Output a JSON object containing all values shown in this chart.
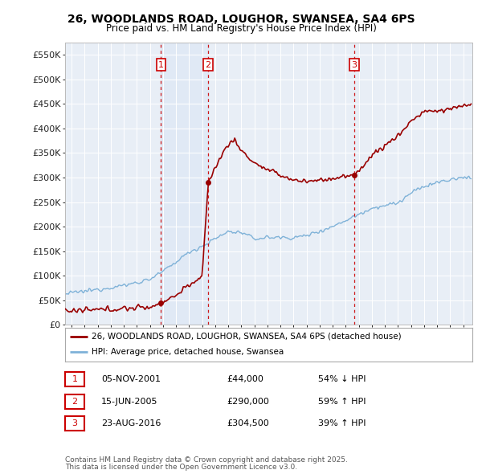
{
  "title": "26, WOODLANDS ROAD, LOUGHOR, SWANSEA, SA4 6PS",
  "subtitle": "Price paid vs. HM Land Registry's House Price Index (HPI)",
  "legend_property": "26, WOODLANDS ROAD, LOUGHOR, SWANSEA, SA4 6PS (detached house)",
  "legend_hpi": "HPI: Average price, detached house, Swansea",
  "footnote_line1": "Contains HM Land Registry data © Crown copyright and database right 2025.",
  "footnote_line2": "This data is licensed under the Open Government Licence v3.0.",
  "ylabel_ticks": [
    "£0",
    "£50K",
    "£100K",
    "£150K",
    "£200K",
    "£250K",
    "£300K",
    "£350K",
    "£400K",
    "£450K",
    "£500K",
    "£550K"
  ],
  "ytick_vals": [
    0,
    50000,
    100000,
    150000,
    200000,
    250000,
    300000,
    350000,
    400000,
    450000,
    500000,
    550000
  ],
  "ylim": [
    0,
    575000
  ],
  "transactions": [
    {
      "num": 1,
      "date": "05-NOV-2001",
      "date_x": 2001.846,
      "price": 44000,
      "label": "£44,000",
      "pct": "54% ↓ HPI"
    },
    {
      "num": 2,
      "date": "15-JUN-2005",
      "date_x": 2005.458,
      "price": 290000,
      "label": "£290,000",
      "pct": "59% ↑ HPI"
    },
    {
      "num": 3,
      "date": "23-AUG-2016",
      "date_x": 2016.644,
      "price": 304500,
      "label": "£304,500",
      "pct": "39% ↑ HPI"
    }
  ],
  "property_color": "#990000",
  "hpi_color": "#7fb2d8",
  "vline_color": "#cc0000",
  "shade_color": "#dde8f5",
  "bg_color": "#e8eef6",
  "grid_color": "#ffffff",
  "marker_box_color": "#cc0000",
  "xlim_start": 1994.5,
  "xlim_end": 2025.7,
  "xtick_start": 1995,
  "xtick_end": 2025
}
